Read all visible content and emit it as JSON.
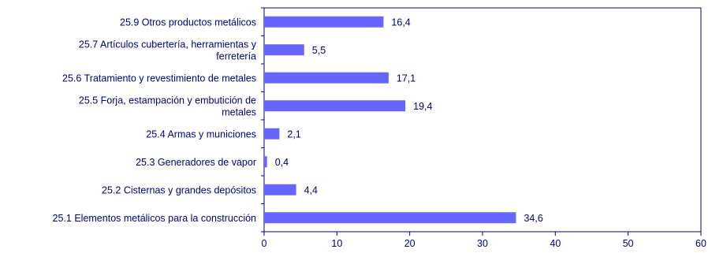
{
  "chart_data": {
    "type": "bar",
    "orientation": "horizontal",
    "categories": [
      [
        "25.9 Otros productos metálicos"
      ],
      [
        "25.7 Artículos cubertería, herramientas y",
        "ferretería"
      ],
      [
        "25.6 Tratamiento y revestimiento de metales"
      ],
      [
        "25.5 Forja, estampación y embutición de",
        "metales"
      ],
      [
        "25.4 Armas y municiones"
      ],
      [
        "25.3 Generadores de vapor"
      ],
      [
        "25.2 Cisternas y grandes depósitos"
      ],
      [
        "25.1 Elementos metálicos para la construcción"
      ]
    ],
    "values": [
      16.4,
      5.5,
      17.1,
      19.4,
      2.1,
      0.4,
      4.4,
      34.6
    ],
    "value_labels": [
      "16,4",
      "5,5",
      "17,1",
      "19,4",
      "2,1",
      "0,4",
      "4,4",
      "34,6"
    ],
    "xlim": [
      0,
      60
    ],
    "xticks": [
      0,
      10,
      20,
      30,
      40,
      50,
      60
    ],
    "title": "",
    "xlabel": "",
    "ylabel": "",
    "grid": false,
    "legend": "none",
    "colors": {
      "bar": "#6666ff",
      "axis": "#000080",
      "text": "#000080"
    }
  }
}
